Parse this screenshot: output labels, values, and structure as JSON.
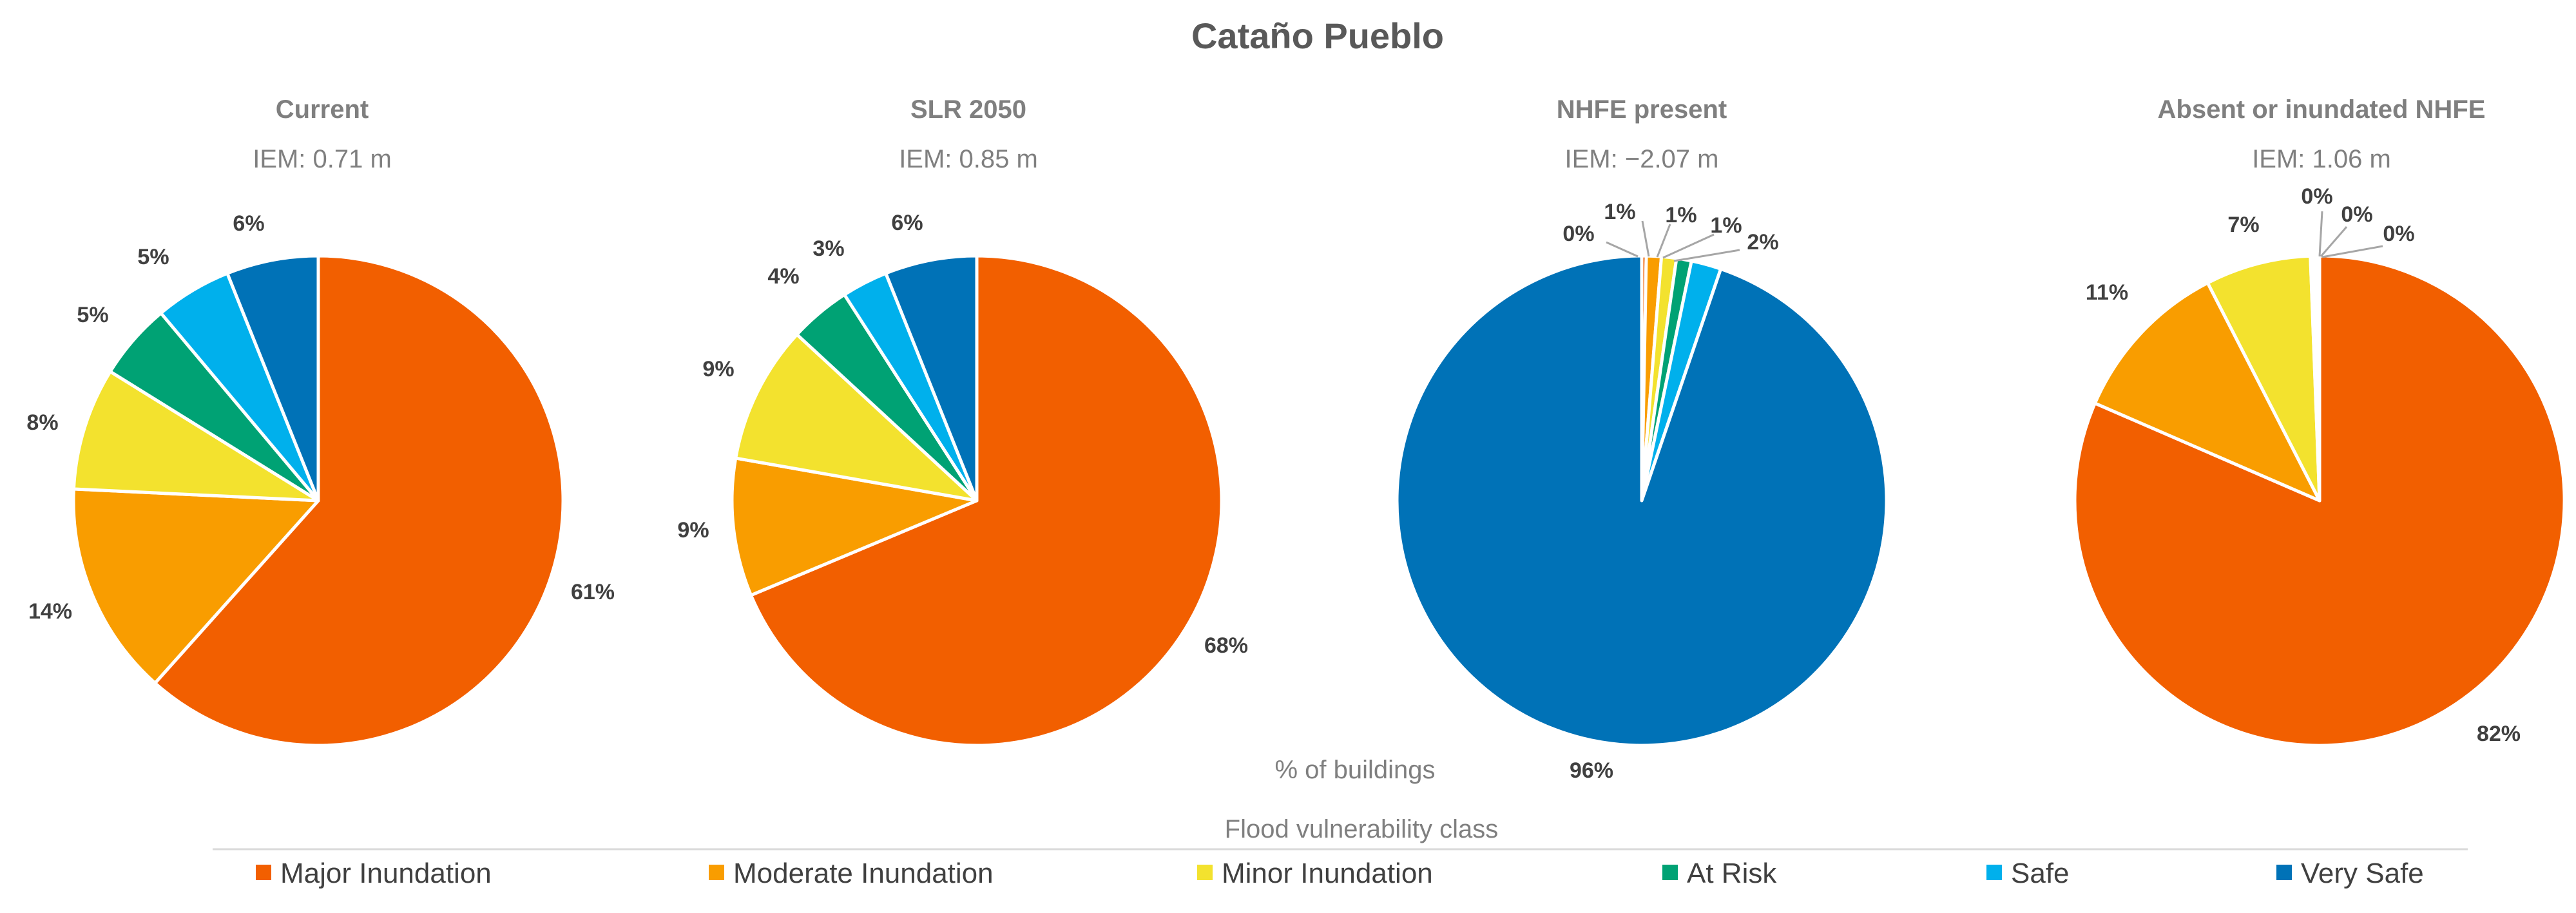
{
  "chart_data": {
    "type": "pie",
    "title": "Cataño Pueblo",
    "axis_label": "% of buildings",
    "legend_title": "Flood vulnerability class",
    "legend_position": "bottom",
    "categories": [
      "Major Inundation",
      "Moderate Inundation",
      "Minor Inundation",
      "At Risk",
      "Safe",
      "Very Safe"
    ],
    "colors": [
      "#f25f00",
      "#f99d00",
      "#f3e22e",
      "#00a274",
      "#00b0ec",
      "#0072b7"
    ],
    "charts": [
      {
        "title": "Current",
        "subtitle": "IEM: 0.71 m",
        "values": [
          61,
          14,
          8,
          5,
          5,
          6
        ],
        "labels": [
          "61%",
          "14%",
          "8%",
          "5%",
          "5%",
          "6%"
        ]
      },
      {
        "title": "SLR 2050",
        "subtitle": "IEM: 0.85 m",
        "values": [
          68,
          9,
          9,
          4,
          3,
          6
        ],
        "labels": [
          "68%",
          "9%",
          "9%",
          "4%",
          "3%",
          "6%"
        ]
      },
      {
        "title": "NHFE present",
        "subtitle": "IEM: −2.07 m",
        "values": [
          0.3,
          1,
          1,
          1,
          2,
          96
        ],
        "labels": [
          "0%",
          "1%",
          "1%",
          "1%",
          "2%",
          "96%"
        ]
      },
      {
        "title": "Absent or inundated NHFE",
        "subtitle": "IEM: 1.06 m",
        "values": [
          82,
          11,
          7,
          0.2,
          0.2,
          0.2
        ],
        "labels": [
          "82%",
          "11%",
          "7%",
          "0%",
          "0%",
          "0%"
        ]
      }
    ]
  }
}
